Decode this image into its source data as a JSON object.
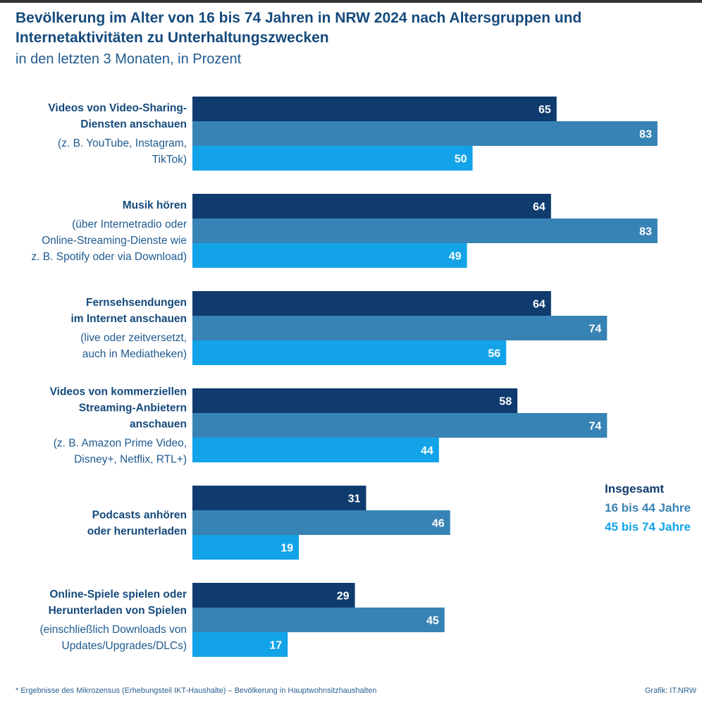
{
  "chart_data": {
    "type": "bar",
    "orientation": "horizontal",
    "title": "Bevölkerung im Alter von 16 bis 74 Jahren in NRW 2024 nach Altersgruppen und Internetaktivitäten zu Unterhaltungszwecken",
    "subtitle": "in den letzten 3 Monaten, in Prozent",
    "categories": [
      {
        "title": "Videos von Video-Sharing-Diensten anschauen",
        "title_lines": [
          "Videos von Video-Sharing-",
          "Diensten anschauen"
        ],
        "note_lines": [
          "(z. B. YouTube, Instagram,",
          "TikTok)"
        ]
      },
      {
        "title": "Musik hören",
        "title_lines": [
          "Musik hören"
        ],
        "note_lines": [
          "(über Internetradio oder",
          "Online-Streaming-Dienste wie",
          "z. B. Spotify oder via Download)"
        ]
      },
      {
        "title": "Fernsehsendungen im Internet anschauen",
        "title_lines": [
          "Fernsehsendungen",
          "im Internet anschauen"
        ],
        "note_lines": [
          "(live oder zeitversetzt,",
          "auch in Mediatheken)"
        ]
      },
      {
        "title": "Videos von kommerziellen Streaming-Anbietern anschauen",
        "title_lines": [
          "Videos von kommerziellen",
          "Streaming-Anbietern",
          "anschauen"
        ],
        "note_lines": [
          "(z. B. Amazon Prime Video,",
          "Disney+, Netflix, RTL+)"
        ]
      },
      {
        "title": "Podcasts anhören oder herunterladen",
        "title_lines": [
          "Podcasts anhören",
          "oder herunterladen"
        ],
        "note_lines": []
      },
      {
        "title": "Online-Spiele spielen oder Herunterladen von Spielen",
        "title_lines": [
          "Online-Spiele spielen oder",
          "Herunterladen von Spielen"
        ],
        "note_lines": [
          "(einschließlich Downloads von",
          "Updates/Upgrades/DLCs)"
        ]
      }
    ],
    "series": [
      {
        "name": "Insgesamt",
        "color": "#0f3b6e",
        "values": [
          65,
          64,
          64,
          58,
          31,
          29
        ]
      },
      {
        "name": "16 bis 44 Jahre",
        "color": "#3883b5",
        "values": [
          83,
          83,
          74,
          74,
          46,
          45
        ]
      },
      {
        "name": "45 bis 74 Jahre",
        "color": "#12a3e8",
        "values": [
          50,
          49,
          56,
          44,
          19,
          17
        ]
      }
    ],
    "xlim": [
      0,
      100
    ],
    "grid": false,
    "legend_position": "right"
  },
  "colors": {
    "label_text": "#154a7c",
    "note_text": "#1f5a8f",
    "value_text": "#ffffff"
  },
  "footnote": "* Ergebnisse des Mikrozensus (Erhebungsteil IKT-Haushalte) – Bevölkerung in Hauptwohnsitzhaushalten",
  "credit": "Grafik: IT.NRW"
}
